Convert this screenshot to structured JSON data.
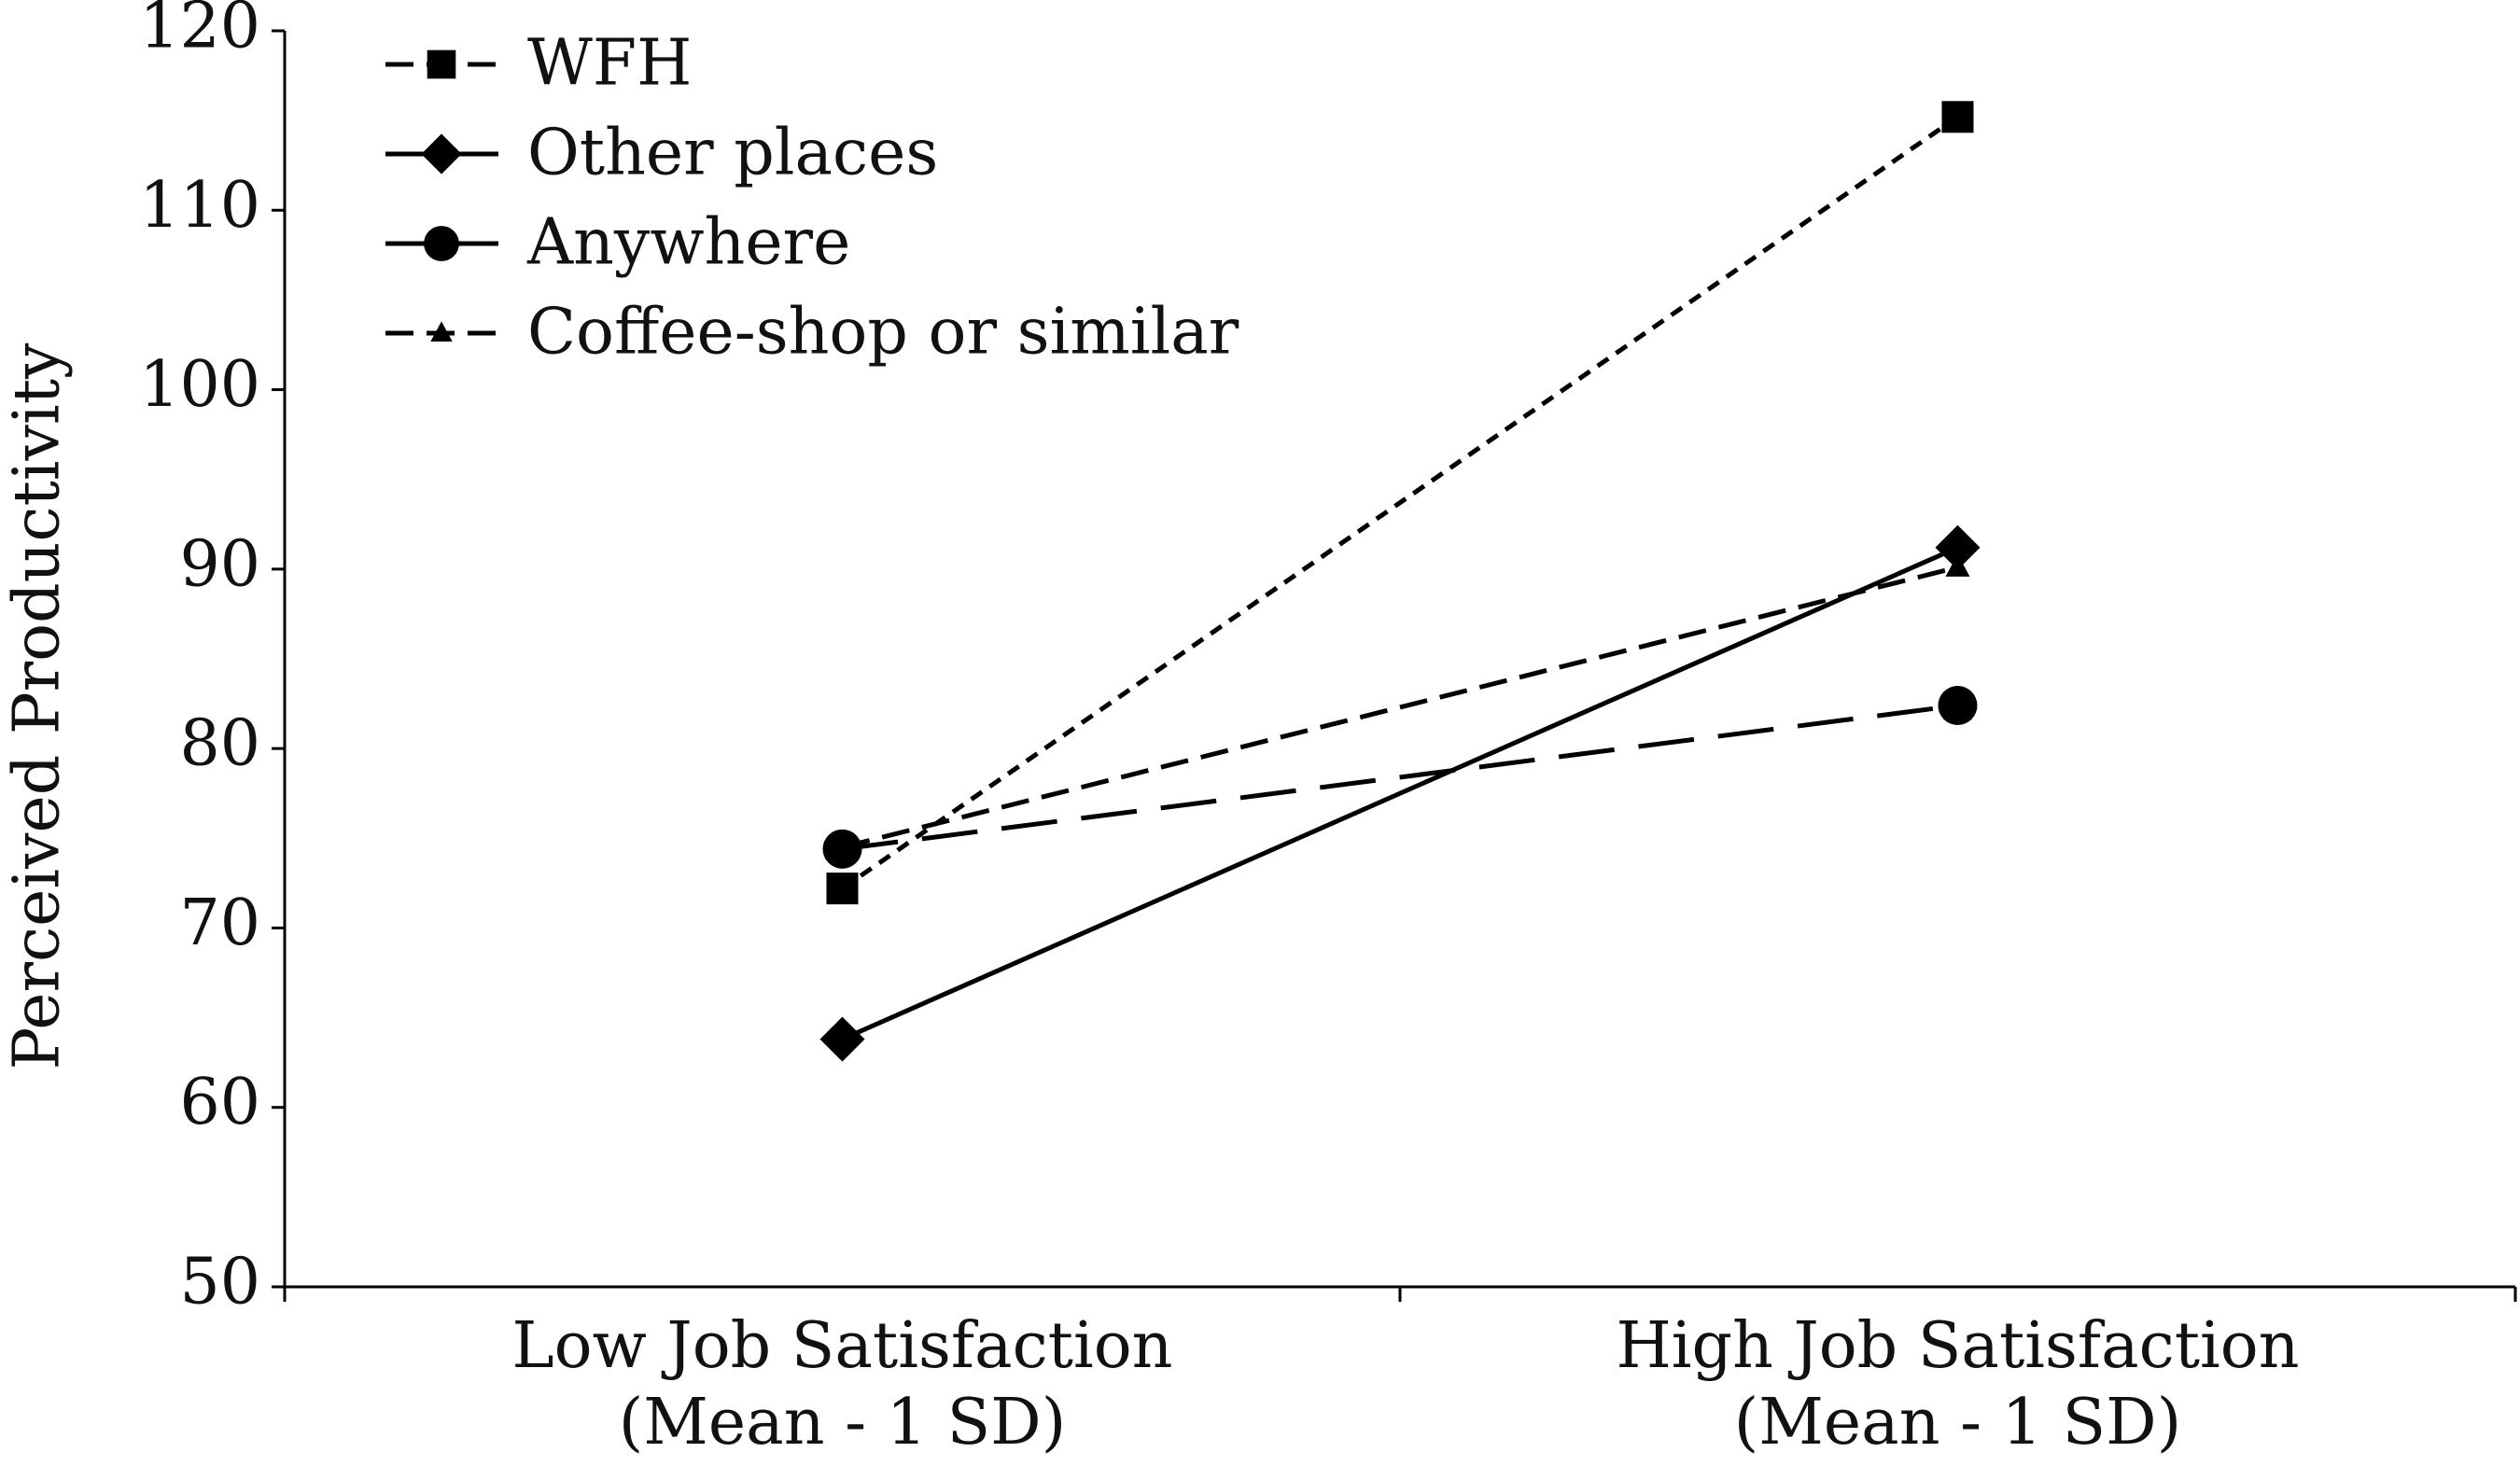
{
  "chart_data": {
    "type": "line",
    "ylabel": "Perceived Productivity",
    "categories": [
      "Low Job Satisfaction\n(Mean - 1 SD)",
      "High Job Satisfaction\n(Mean - 1 SD)"
    ],
    "series": [
      {
        "name": "WFH",
        "color": "#000000",
        "marker": "square",
        "line_style": "dotted",
        "values": [
          72.2,
          115.2
        ]
      },
      {
        "name": "Other places",
        "color": "#000000",
        "marker": "diamond",
        "line_style": "solid",
        "values": [
          63.8,
          91.2
        ]
      },
      {
        "name": "Anywhere",
        "color": "#000000",
        "marker": "circle",
        "line_style": "longdash",
        "values": [
          74.4,
          82.4
        ]
      },
      {
        "name": "Coffee-shop or similar",
        "color": "#000000",
        "marker": "triangle",
        "line_style": "dashed",
        "values": [
          74.5,
          90.1
        ]
      }
    ],
    "ylim": [
      50,
      120
    ],
    "yticks": [
      50,
      60,
      70,
      80,
      90,
      100,
      110,
      120
    ],
    "legend": "upper left",
    "grid": false
  }
}
